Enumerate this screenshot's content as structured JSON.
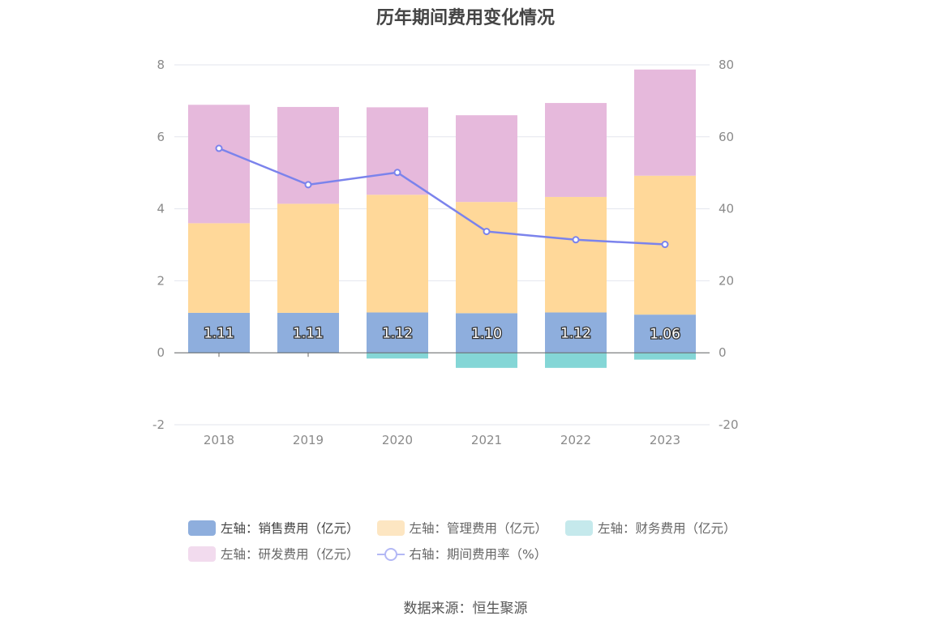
{
  "title": "历年期间费用变化情况",
  "source": "数据来源：恒生聚源",
  "chart_data": {
    "type": "bar",
    "stacked": true,
    "title": "历年期间费用变化情况",
    "categories": [
      "2018",
      "2019",
      "2020",
      "2021",
      "2022",
      "2023"
    ],
    "left_axis": {
      "ylim": [
        -2,
        8
      ],
      "ticks": [
        "-2",
        "0",
        "2",
        "4",
        "6",
        "8"
      ]
    },
    "right_axis": {
      "ylim": [
        -20,
        80
      ],
      "ticks": [
        "-20",
        "0",
        "20",
        "40",
        "60",
        "80"
      ]
    },
    "series": [
      {
        "name": "左轴：销售费用（亿元）",
        "type": "bar",
        "axis": "left",
        "color": "#8eaedd",
        "values": [
          1.11,
          1.11,
          1.12,
          1.1,
          1.12,
          1.06
        ],
        "labels": [
          "1.11",
          "1.11",
          "1.12",
          "1.10",
          "1.12",
          "1.06"
        ]
      },
      {
        "name": "左轴：管理费用（亿元）",
        "type": "bar",
        "axis": "left",
        "color": "#ffd899",
        "values": [
          2.49,
          3.03,
          3.27,
          3.09,
          3.21,
          3.86
        ]
      },
      {
        "name": "左轴：财务费用（亿元）",
        "type": "bar",
        "axis": "left",
        "color": "#84d6d6",
        "values": [
          -0.01,
          -0.01,
          -0.16,
          -0.42,
          -0.42,
          -0.19
        ]
      },
      {
        "name": "左轴：研发费用（亿元）",
        "type": "bar",
        "axis": "left",
        "color": "#e6b9dc",
        "values": [
          3.29,
          2.69,
          2.43,
          2.41,
          2.61,
          2.95
        ]
      },
      {
        "name": "右轴：期间费用率（%）",
        "type": "line",
        "axis": "right",
        "color": "#7b83ec",
        "values": [
          56.8,
          46.7,
          50.1,
          33.7,
          31.4,
          30.1
        ]
      }
    ],
    "legend_position": "bottom",
    "grid": true
  },
  "legend": [
    {
      "label": "左轴：销售费用（亿元）",
      "color": "#8eaedd",
      "kind": "bar"
    },
    {
      "label": "左轴：管理费用（亿元）",
      "color": "#fde6c2",
      "kind": "bar"
    },
    {
      "label": "左轴：财务费用（亿元）",
      "color": "#c5e9ec",
      "kind": "bar"
    },
    {
      "label": "左轴：研发费用（亿元）",
      "color": "#f2dbee",
      "kind": "bar"
    },
    {
      "label": "右轴：期间费用率（%）",
      "color": "#b3b8f5",
      "kind": "line"
    }
  ]
}
